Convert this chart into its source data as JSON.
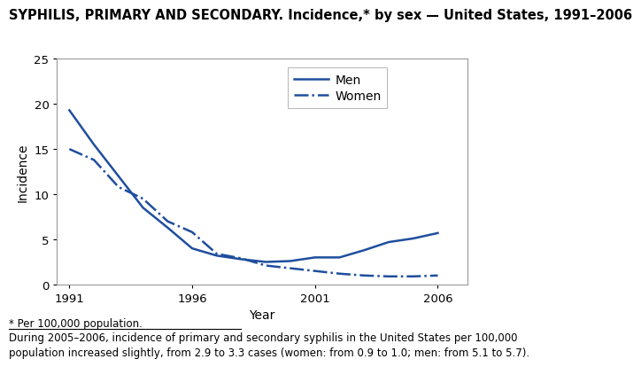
{
  "title": "SYPHILIS, PRIMARY AND SECONDARY. Incidence,* by sex — United States, 1991–2006",
  "xlabel": "Year",
  "ylabel": "Incidence",
  "xlim": [
    1990.5,
    2007.2
  ],
  "ylim": [
    0,
    25
  ],
  "yticks": [
    0,
    5,
    10,
    15,
    20,
    25
  ],
  "xticks": [
    1991,
    1996,
    2001,
    2006
  ],
  "men_years": [
    1991,
    1992,
    1993,
    1994,
    1995,
    1996,
    1997,
    1998,
    1999,
    2000,
    2001,
    2002,
    2003,
    2004,
    2005,
    2006
  ],
  "men_values": [
    19.3,
    15.5,
    12.0,
    8.5,
    6.3,
    4.0,
    3.2,
    2.8,
    2.5,
    2.6,
    3.0,
    3.0,
    3.8,
    4.7,
    5.1,
    5.7
  ],
  "women_years": [
    1991,
    1992,
    1993,
    1994,
    1995,
    1996,
    1997,
    1998,
    1999,
    2000,
    2001,
    2002,
    2003,
    2004,
    2005,
    2006
  ],
  "women_values": [
    15.0,
    13.8,
    10.8,
    9.5,
    7.0,
    5.8,
    3.4,
    2.9,
    2.1,
    1.8,
    1.5,
    1.2,
    1.0,
    0.9,
    0.9,
    1.0
  ],
  "line_color": "#1f4e9e",
  "legend_labels": [
    "Men",
    "Women"
  ],
  "footnote1": "* Per 100,000 population.",
  "footnote2": "During 2005–2006, incidence of primary and secondary syphilis in the United States per 100,000\npopulation increased slightly, from 2.9 to 3.3 cases (women: from 0.9 to 1.0; men: from 5.1 to 5.7).",
  "bg_color": "#ffffff",
  "title_fontsize": 10.5,
  "axis_fontsize": 10,
  "tick_fontsize": 9.5,
  "footnote_fontsize": 8.5,
  "footnote2_fontsize": 8.5
}
